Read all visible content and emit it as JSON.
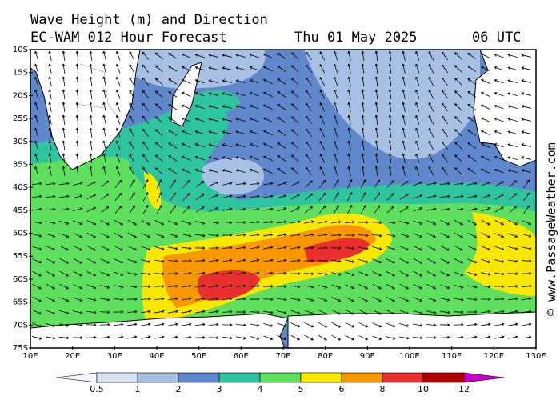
{
  "header": {
    "title": "Wave Height (m) and Direction",
    "model": "EC-WAM 012 Hour Forecast",
    "date": "Thu 01 May 2025",
    "time": "06 UTC"
  },
  "latitude_labels": [
    "10S",
    "15S",
    "20S",
    "25S",
    "30S",
    "35S",
    "40S",
    "45S",
    "50S",
    "55S",
    "60S",
    "65S",
    "70S",
    "75S"
  ],
  "longitude_labels": [
    "10E",
    "20E",
    "30E",
    "40E",
    "50E",
    "60E",
    "70E",
    "80E",
    "90E",
    "100E",
    "110E",
    "120E",
    "130E"
  ],
  "legend": {
    "values": [
      0.5,
      1,
      2,
      3,
      4,
      5,
      6,
      8,
      10,
      12
    ],
    "colors": [
      "#f4f6fb",
      "#d8e4f4",
      "#a8c0e4",
      "#5f87cc",
      "#2ec4a0",
      "#5ee05e",
      "#f8e800",
      "#f89800",
      "#e83030",
      "#b00000",
      "#c800c8"
    ]
  },
  "watermark": "© www.PassageWeather.com"
}
